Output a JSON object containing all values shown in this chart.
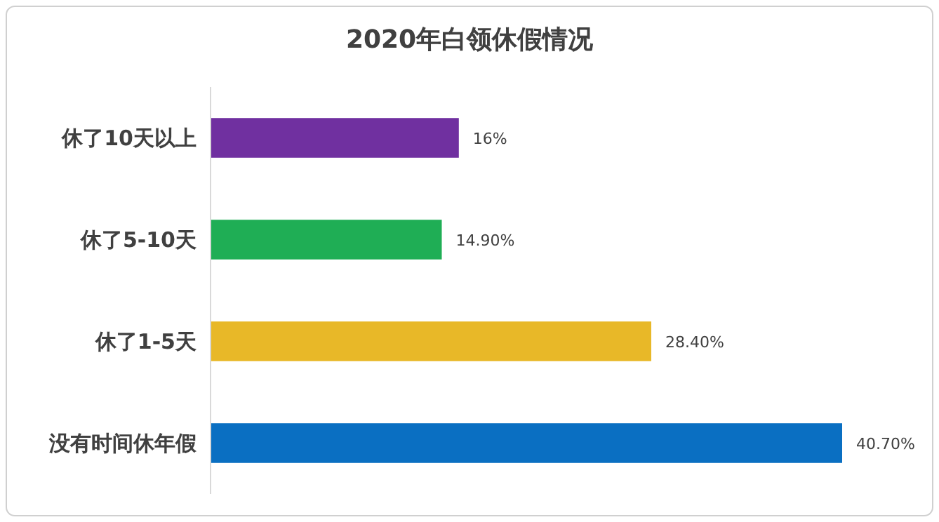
{
  "chart_data": {
    "type": "bar",
    "orientation": "horizontal",
    "title": "2020年白领休假情况",
    "categories": [
      "休了10天以上",
      "休了5-10天",
      "休了1-5天",
      "没有时间休年假"
    ],
    "values": [
      16,
      14.9,
      28.4,
      40.7
    ],
    "value_labels": [
      "16%",
      "14.90%",
      "28.40%",
      "40.70%"
    ],
    "colors": [
      "#7030a0",
      "#1fae55",
      "#e8b828",
      "#0a6fc2"
    ],
    "grid": false
  }
}
